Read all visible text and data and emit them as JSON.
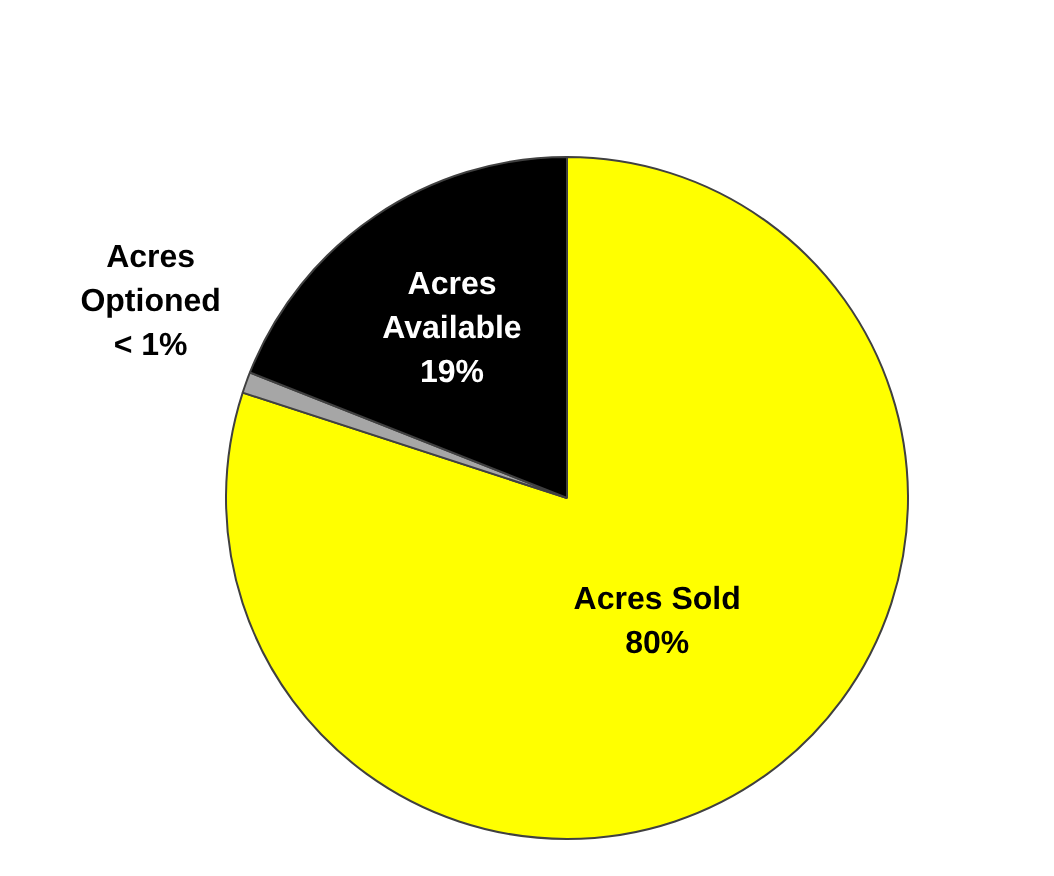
{
  "chart_data": {
    "type": "pie",
    "categories": [
      "Acres Sold",
      "Acres Optioned",
      "Acres Available"
    ],
    "values": [
      80,
      1,
      19
    ],
    "colors": [
      "#ffff00",
      "#a6a6a6",
      "#000000"
    ],
    "value_labels": [
      "80%",
      "< 1%",
      "19%"
    ],
    "legend": false
  }
}
